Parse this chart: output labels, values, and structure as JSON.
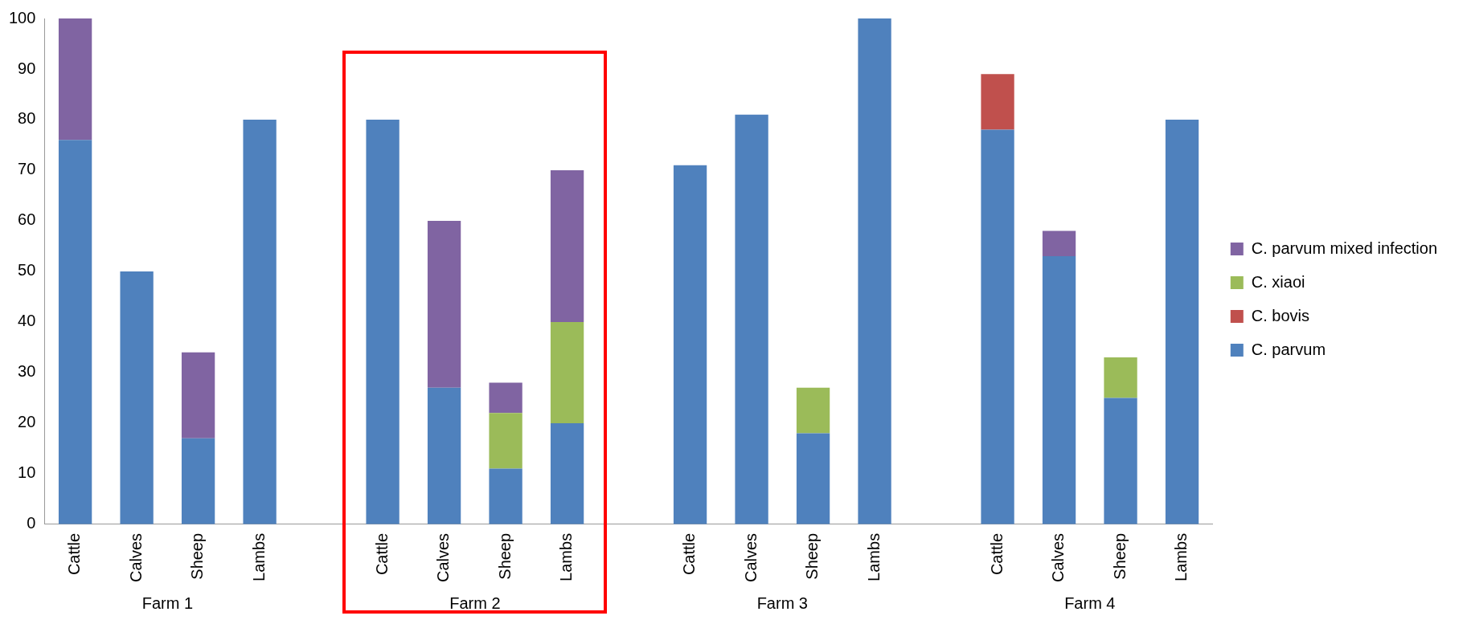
{
  "chart_data": {
    "type": "bar",
    "stacked": true,
    "categories": [
      "Cattle",
      "Calves",
      "Sheep",
      "Lambs",
      null,
      "Cattle",
      "Calves",
      "Sheep",
      "Lambs",
      null,
      "Cattle",
      "Calves",
      "Sheep",
      "Lambs",
      null,
      "Cattle",
      "Calves",
      "Sheep",
      "Lambs"
    ],
    "series": [
      {
        "name": "C. parvum",
        "color": "#4f81bd",
        "values": [
          76,
          50,
          17,
          80,
          null,
          80,
          27,
          11,
          20,
          null,
          71,
          81,
          18,
          100,
          null,
          78,
          53,
          25,
          80
        ]
      },
      {
        "name": "C. bovis",
        "color": "#c0504d",
        "values": [
          0,
          0,
          0,
          0,
          null,
          0,
          0,
          0,
          0,
          null,
          0,
          0,
          0,
          0,
          null,
          11,
          0,
          0,
          0
        ]
      },
      {
        "name": "C. xiaoi",
        "color": "#9bbb59",
        "values": [
          0,
          0,
          0,
          0,
          null,
          0,
          0,
          11,
          20,
          null,
          0,
          0,
          9,
          0,
          null,
          0,
          0,
          8,
          0
        ]
      },
      {
        "name": "C. parvum mixed infection",
        "color": "#8064a2",
        "values": [
          24,
          0,
          17,
          0,
          null,
          0,
          33,
          6,
          30,
          null,
          0,
          0,
          0,
          0,
          null,
          0,
          5,
          0,
          0
        ]
      }
    ],
    "ylim": [
      0,
      100
    ],
    "yticks": [
      0,
      10,
      20,
      30,
      40,
      50,
      60,
      70,
      80,
      90,
      100
    ],
    "grid": false,
    "legend": "right",
    "annotations": [
      "Farm 1",
      "Farm 2",
      "Farm 3",
      "Farm 4"
    ]
  }
}
